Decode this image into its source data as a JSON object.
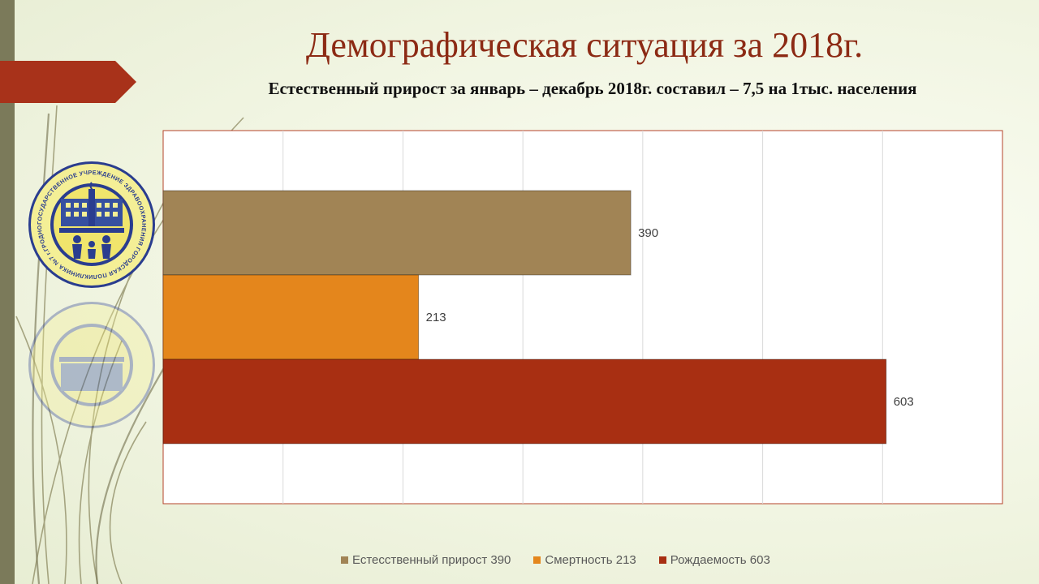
{
  "slide": {
    "title": "Демографическая ситуация за 2018г.",
    "subtitle": "Естественный прирост за январь – декабрь 2018г. составил – 7,5 на 1тыс. населения"
  },
  "emblem": {
    "text": "ГОСУДАРСТВЕННОЕ УЧРЕЖДЕНИЕ ЗДРАВООХРАНЕНИЯ ГОРОДСКАЯ ПОЛИКЛИНИКА №7 г.ГРОДНО"
  },
  "colors": {
    "title": "#8c2a14",
    "accent": "#a8321a",
    "strip": "#7b7a5a"
  },
  "chart_data": {
    "type": "bar",
    "orientation": "horizontal",
    "xlim": [
      0,
      700
    ],
    "grid": true,
    "legend_position": "bottom",
    "series": [
      {
        "name": "Естесственный прирост 390",
        "value": 390,
        "label": "390",
        "color": "#a18455"
      },
      {
        "name": "Смертность 213",
        "value": 213,
        "label": "213",
        "color": "#e4861c"
      },
      {
        "name": "Рождаемость  603",
        "value": 603,
        "label": "603",
        "color": "#a82f12"
      }
    ]
  }
}
